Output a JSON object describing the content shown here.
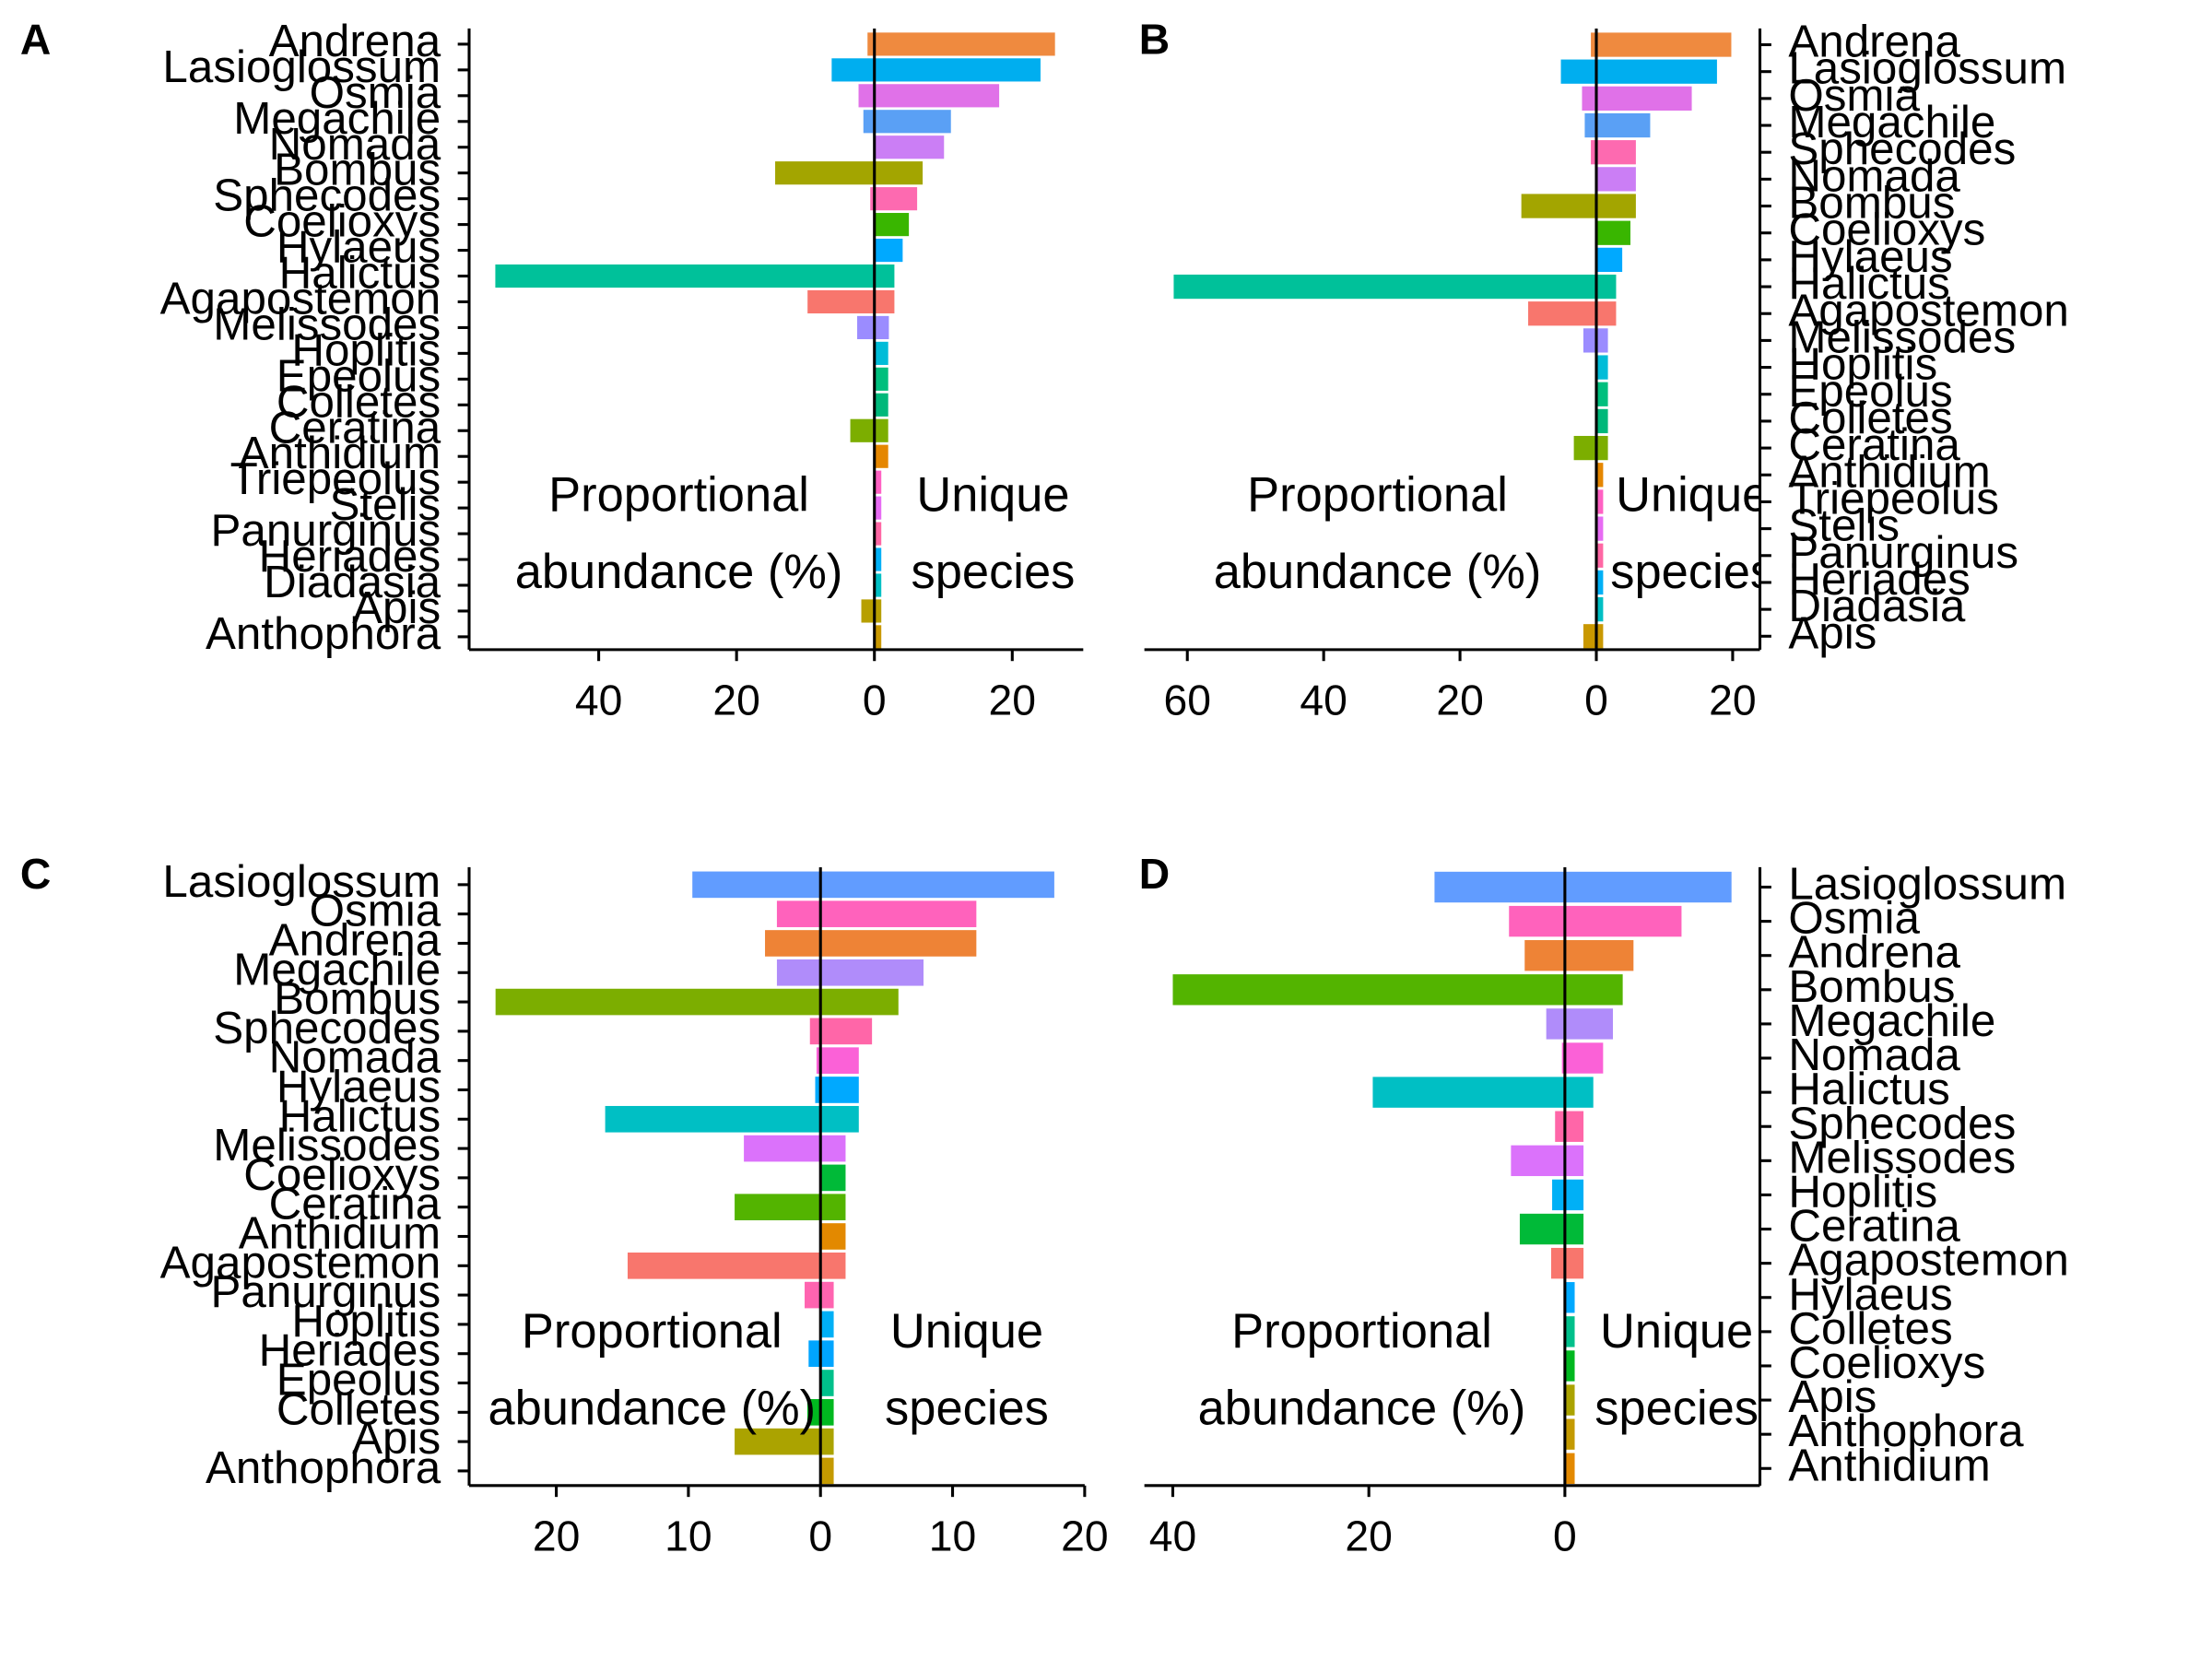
{
  "chart_data": [
    {
      "type": "diverging_bar",
      "title": "A",
      "yaxis_position": "left",
      "categories": [
        "Andrena",
        "Lasioglossum",
        "Osmia",
        "Megachile",
        "Nomada",
        "Bombus",
        "Sphecodes",
        "Coelioxys",
        "Hylaeus",
        "Halictus",
        "Agapostemon",
        "Melissodes",
        "Hoplitis",
        "Epeolus",
        "Colletes",
        "Ceratina",
        "Anthidium",
        "Triepeolus",
        "Stelis",
        "Panurginus",
        "Heriades",
        "Diadasia",
        "Apis",
        "Anthophora"
      ],
      "colors": [
        "#ef8a3f",
        "#00aeef",
        "#e071e8",
        "#5aa0f5",
        "#cb7ef5",
        "#a3a500",
        "#fd6ab0",
        "#39b600",
        "#00a9ff",
        "#00c19a",
        "#f8766d",
        "#9b8cff",
        "#00bcd8",
        "#00bf7d",
        "#00b87a",
        "#7cae00",
        "#e58700",
        "#ff61c3",
        "#e76bf3",
        "#ff67a4",
        "#00b0f6",
        "#00bfc4",
        "#b79f00",
        "#c99800"
      ],
      "series": [
        {
          "values": [
            -1,
            -6.2,
            -2.3,
            -1.6,
            0,
            -14.4,
            -0.6,
            0,
            0,
            -55,
            -9.7,
            -2.5,
            0,
            0,
            0,
            -3.5,
            0,
            0,
            0,
            0,
            0,
            0,
            -1.9,
            0
          ]
        },
        {
          "values": [
            26.2,
            24.1,
            18.1,
            11.1,
            10.1,
            7,
            6.2,
            5,
            4.1,
            2.9,
            2.9,
            2.1,
            2,
            2,
            2,
            2,
            2,
            1,
            1,
            1,
            1,
            1,
            1,
            1
          ]
        }
      ],
      "annotations": [
        "Proportional",
        "abundance (%)",
        "Unique",
        "species"
      ],
      "xlim": [
        -58.8,
        30.3
      ],
      "xticks": [
        {
          "value": -40,
          "label": "40"
        },
        {
          "value": -20,
          "label": "20"
        },
        0,
        20
      ]
    },
    {
      "type": "diverging_bar",
      "title": "B",
      "yaxis_position": "right",
      "categories": [
        "Andrena",
        "Lasioglossum",
        "Osmia",
        "Megachile",
        "Sphecodes",
        "Nomada",
        "Bombus",
        "Coelioxys",
        "Hylaeus",
        "Halictus",
        "Agapostemon",
        "Melissodes",
        "Hoplitis",
        "Epeolus",
        "Colletes",
        "Ceratina",
        "Anthidium",
        "Triepeolus",
        "Stelis",
        "Panurginus",
        "Heriades",
        "Diadasia",
        "Apis"
      ],
      "colors": [
        "#ef8a3f",
        "#00aeef",
        "#e071e8",
        "#5aa0f5",
        "#fd6ab0",
        "#cb7ef5",
        "#a3a500",
        "#39b600",
        "#00a9ff",
        "#00c19a",
        "#f8766d",
        "#9b8cff",
        "#00bcd8",
        "#00bf7d",
        "#00b87a",
        "#7cae00",
        "#e58700",
        "#ff61c3",
        "#e76bf3",
        "#ff67a4",
        "#00b0f6",
        "#00bfc4",
        "#c99800"
      ],
      "series": [
        {
          "values": [
            -0.8,
            -5.2,
            -2.1,
            -1.7,
            -0.8,
            0,
            -11,
            0,
            0,
            -62,
            -10,
            -1.9,
            0,
            0,
            0,
            -3.3,
            0,
            0,
            0,
            0,
            0,
            0,
            -1.9
          ]
        },
        {
          "values": [
            19.8,
            17.7,
            14,
            7.9,
            5.8,
            5.8,
            5.8,
            5,
            3.8,
            2.9,
            2.9,
            1.7,
            1.7,
            1.7,
            1.7,
            1.7,
            1,
            1,
            1,
            1,
            1,
            1,
            1
          ]
        }
      ],
      "annotations": [
        "Proportional",
        "abundance (%)",
        "Unique",
        "species"
      ],
      "xlim": [
        -66.3,
        24
      ],
      "xticks": [
        {
          "value": -60,
          "label": "60"
        },
        {
          "value": -40,
          "label": "40"
        },
        {
          "value": -20,
          "label": "20"
        },
        0,
        20
      ]
    },
    {
      "type": "diverging_bar",
      "title": "C",
      "yaxis_position": "left",
      "categories": [
        "Lasioglossum",
        "Osmia",
        "Andrena",
        "Megachile",
        "Bombus",
        "Sphecodes",
        "Nomada",
        "Hylaeus",
        "Halictus",
        "Melissodes",
        "Coelioxys",
        "Ceratina",
        "Anthidium",
        "Agapostemon",
        "Panurginus",
        "Hoplitis",
        "Heriades",
        "Epeolus",
        "Colletes",
        "Apis",
        "Anthophora"
      ],
      "colors": [
        "#619cff",
        "#ff62bc",
        "#ee8336",
        "#b08cfa",
        "#7cae00",
        "#ff66a8",
        "#fb61d7",
        "#00a9ff",
        "#00bfc4",
        "#db72fb",
        "#00ba38",
        "#53b400",
        "#e38900",
        "#f8766d",
        "#ff64b0",
        "#00b0f6",
        "#00a5ff",
        "#00c08b",
        "#00b81f",
        "#aba300",
        "#c49a00"
      ],
      "series": [
        {
          "values": [
            -9.7,
            -3.3,
            -4.2,
            -3.3,
            -24.6,
            -0.8,
            -0.3,
            -0.4,
            -16.3,
            -5.8,
            0,
            -6.5,
            0,
            -14.6,
            -1.2,
            0,
            -0.9,
            0,
            -1,
            -6.5,
            0
          ]
        },
        {
          "values": [
            17.7,
            11.8,
            11.8,
            7.8,
            5.9,
            3.9,
            2.9,
            2.9,
            2.9,
            1.9,
            1.9,
            1.9,
            1.9,
            1.9,
            1,
            1,
            1,
            1,
            1,
            1,
            1
          ]
        }
      ],
      "annotations": [
        "Proportional",
        "abundance (%)",
        "Unique",
        "species"
      ],
      "xlim": [
        -26.6,
        20
      ],
      "xticks": [
        {
          "value": -20,
          "label": "20"
        },
        {
          "value": -10,
          "label": "10"
        },
        0,
        10,
        20
      ]
    },
    {
      "type": "diverging_bar",
      "title": "D",
      "yaxis_position": "right",
      "categories": [
        "Lasioglossum",
        "Osmia",
        "Andrena",
        "Bombus",
        "Megachile",
        "Nomada",
        "Halictus",
        "Sphecodes",
        "Melissodes",
        "Hoplitis",
        "Ceratina",
        "Agapostemon",
        "Hylaeus",
        "Colletes",
        "Coelioxys",
        "Apis",
        "Anthophora",
        "Anthidium"
      ],
      "colors": [
        "#619cff",
        "#ff62bc",
        "#ee8336",
        "#53b400",
        "#b08cfa",
        "#fb61d7",
        "#00bfc4",
        "#ff66a8",
        "#db72fb",
        "#00b0f6",
        "#00ba38",
        "#f8766d",
        "#00a9ff",
        "#00c08b",
        "#00b81f",
        "#aba300",
        "#c49a00",
        "#e38900"
      ],
      "series": [
        {
          "values": [
            -13.3,
            -5.7,
            -4.1,
            -40,
            -1.9,
            -0.3,
            -19.6,
            -1,
            -5.5,
            -1.3,
            -4.6,
            -1.4,
            0,
            0,
            0,
            0,
            0,
            0
          ]
        },
        {
          "values": [
            17,
            11.9,
            7,
            5.9,
            4.9,
            3.9,
            2.9,
            1.9,
            1.9,
            1.9,
            1.9,
            1.9,
            1,
            1,
            1,
            1,
            1,
            1
          ]
        }
      ],
      "annotations": [
        "Proportional",
        "abundance (%)",
        "Unique",
        "species"
      ],
      "xlim": [
        -42.9,
        19.9
      ],
      "xticks": [
        {
          "value": -40,
          "label": "40"
        },
        {
          "value": -20,
          "label": "20"
        },
        0
      ]
    }
  ]
}
